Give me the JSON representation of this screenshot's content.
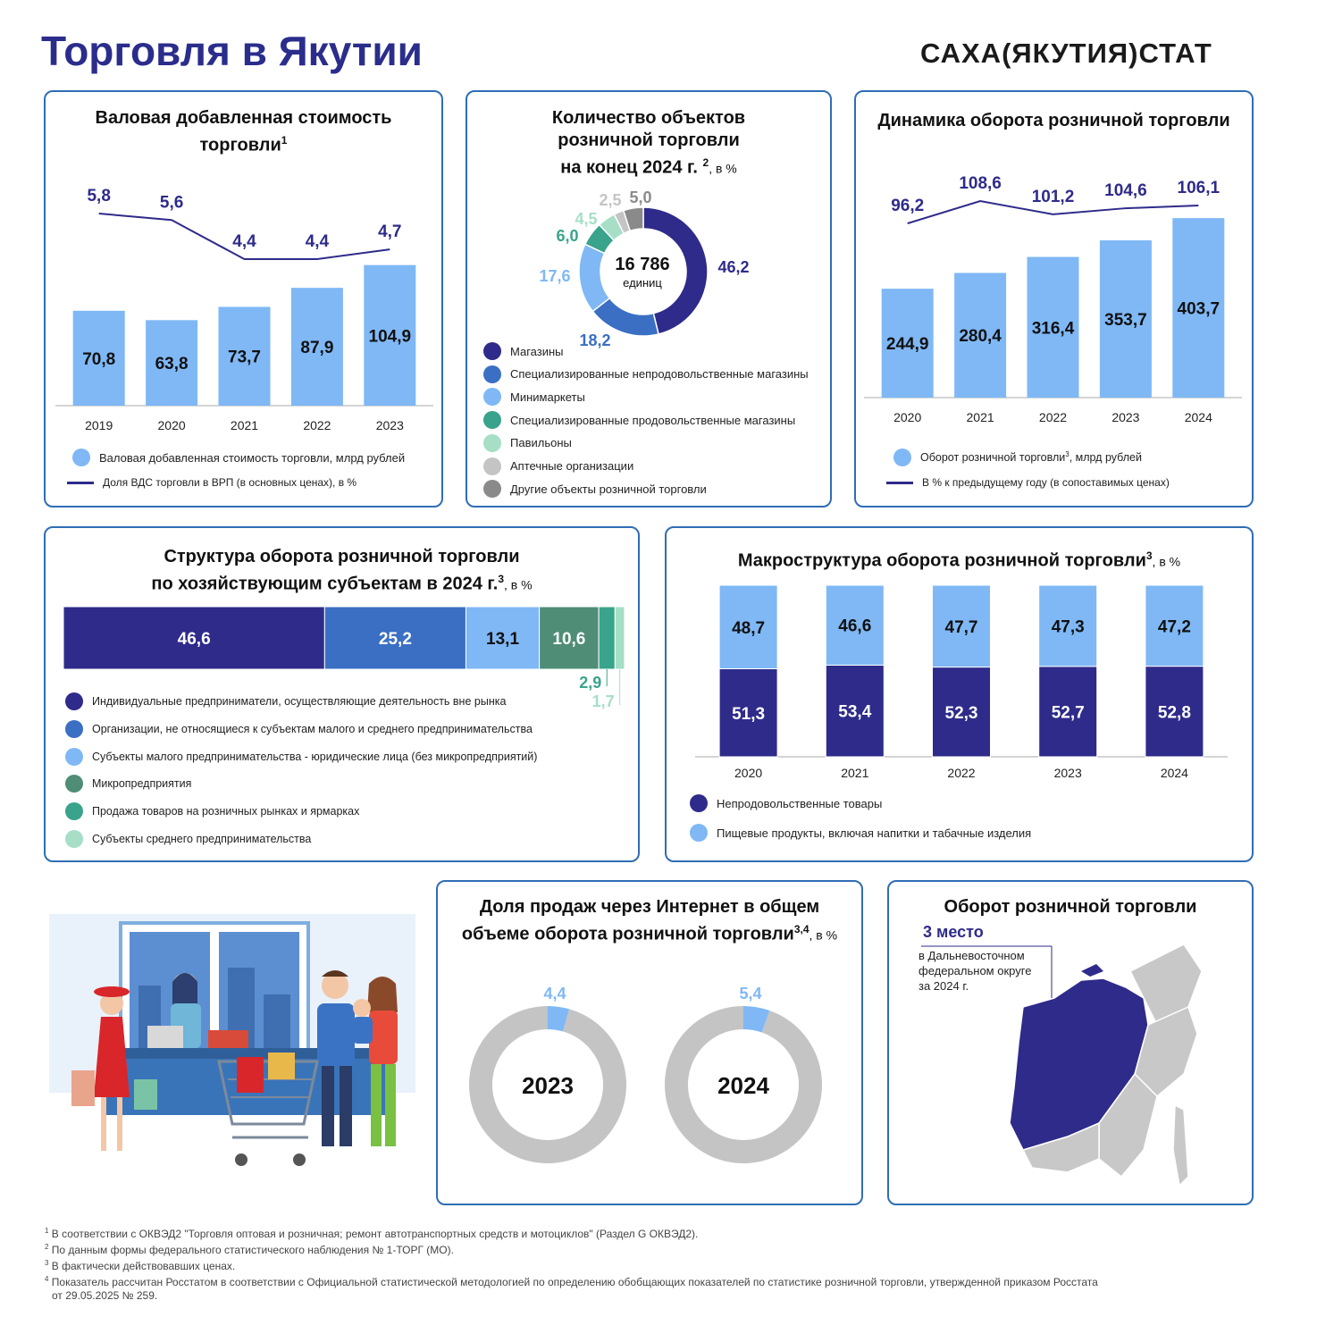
{
  "header": {
    "title": "Торговля в Якутии",
    "brand": "САХА(ЯКУТИЯ)СТАТ"
  },
  "colors": {
    "navy": "#2e2b8a",
    "blue": "#3a6fc4",
    "lightblue": "#7fb8f5",
    "teal": "#3aa38b",
    "mint": "#a6dfc6",
    "gray": "#c4c4c4",
    "darkgray": "#8a8a8a",
    "green": "#4f8d76",
    "title": "#2b2d8c",
    "border": "#2f6db5"
  },
  "gva": {
    "title_line1": "Валовая добавленная стоимость",
    "title_line2": "торговли",
    "title_sup": "1",
    "legend_bar": "Валовая добавленная стоимость торговли, млрд рублей",
    "legend_line": "Доля ВДС торговли в ВРП (в основных ценах),  в %"
  },
  "objects": {
    "title_line1": "Количество объектов",
    "title_line2": "розничной торговли",
    "title_line3": "на конец 2024 г.",
    "title_sup": "2",
    "unit": ", в %",
    "center_value": "16 786",
    "center_unit": "единиц"
  },
  "dynamics": {
    "title": "Динамика оборота розничной торговли",
    "legend_bar": "Оборот розничной торговли",
    "legend_bar_sup": "3",
    "legend_bar_unit": ", млрд рублей",
    "legend_line": "В % к предыдущему  году (в сопоставимых  ценах)"
  },
  "structure": {
    "title_line1": "Структура оборота розничной торговли",
    "title_line2": "по хозяйствующим  субъектам в 2024 г.",
    "title_sup": "3",
    "unit": ", в %"
  },
  "macro": {
    "title": "Макроструктура оборота розничной торговли",
    "title_sup": "3",
    "unit": ", в %"
  },
  "internet": {
    "title_line1": "Доля продаж через Интернет в общем",
    "title_line2": "объеме оборота розничной торговли",
    "title_sup": "3,4",
    "unit": ", в %"
  },
  "rank": {
    "title": "Оборот розничной торговли",
    "place": "3 место",
    "desc_line1": "в Дальневосточном",
    "desc_line2": "федеральном округе",
    "desc_line3": "за 2024 г."
  },
  "footnotes": [
    {
      "n": "1",
      "text": "В соответствии с ОКВЭД2 \"Торговля оптовая и розничная; ремонт автотранспортных средств и мотоциклов\" (Раздел G ОКВЭД2)."
    },
    {
      "n": "2",
      "text": "По данным  формы федерального статистического наблюдения № 1-ТОРГ (МО)."
    },
    {
      "n": "3",
      "text": "В фактически действовавших ценах."
    },
    {
      "n": "4",
      "text": "Показатель рассчитан Росстатом в соответствии с Официальной  статистической методологией по определению обобщающих показателей по статистике розничной торговли, утвержденной приказом Росстата"
    },
    {
      "n": "",
      "text": "от 29.05.2025 № 259."
    }
  ],
  "chart_data": [
    {
      "id": "gva",
      "type": "bar",
      "categories": [
        "2019",
        "2020",
        "2021",
        "2022",
        "2023"
      ],
      "values": [
        70.8,
        63.8,
        73.7,
        87.9,
        104.9
      ],
      "value_labels": [
        "70,8",
        "63,8",
        "73,7",
        "87,9",
        "104,9"
      ],
      "line_values": [
        5.8,
        5.6,
        4.4,
        4.4,
        4.7
      ],
      "line_labels": [
        "5,8",
        "5,6",
        "4,4",
        "4,4",
        "4,7"
      ],
      "ylim": [
        0,
        110
      ]
    },
    {
      "id": "objects",
      "type": "pie",
      "values": [
        46.2,
        18.2,
        17.6,
        6.0,
        4.5,
        2.5,
        5.0
      ],
      "value_labels": [
        "46,2",
        "18,2",
        "17,6",
        "6,0",
        "4,5",
        "2,5",
        "5,0"
      ],
      "labels": [
        "Магазины",
        "Специализированные  непродовольственные магазины",
        "Минимаркеты",
        "Специализированные  продовольственные магазины",
        "Павильоны",
        "Аптечные организации",
        "Другие объекты розничной торговли"
      ],
      "colors": [
        "#2e2b8a",
        "#3a6fc4",
        "#7fb8f5",
        "#3aa38b",
        "#a6dfc6",
        "#c4c4c4",
        "#8a8a8a"
      ]
    },
    {
      "id": "dynamics",
      "type": "bar",
      "categories": [
        "2020",
        "2021",
        "2022",
        "2023",
        "2024"
      ],
      "values": [
        244.9,
        280.4,
        316.4,
        353.7,
        403.7
      ],
      "value_labels": [
        "244,9",
        "280,4",
        "316,4",
        "353,7",
        "403,7"
      ],
      "line_values": [
        96.2,
        108.6,
        101.2,
        104.6,
        106.1
      ],
      "line_labels": [
        "96,2",
        "108,6",
        "101,2",
        "104,6",
        "106,1"
      ],
      "ylim": [
        0,
        420
      ]
    },
    {
      "id": "structure",
      "type": "bar",
      "values": [
        46.6,
        25.2,
        13.1,
        10.6,
        2.9,
        1.7
      ],
      "value_labels": [
        "46,6",
        "25,2",
        "13,1",
        "10,6",
        "2,9",
        "1,7"
      ],
      "labels": [
        "Индивидуальные  предприниматели, осуществляющие деятельность вне рынка",
        "Организации, не относящиеся к субъектам малого и среднего предпринимательства",
        "Субъекты малого предпринимательства - юридические лица (без микропредприятий)",
        "Микропредприятия",
        "Продажа товаров на розничных рынках и ярмарках",
        "Субъекты среднего предпринимательства"
      ],
      "colors": [
        "#2e2b8a",
        "#3a6fc4",
        "#7fb8f5",
        "#4f8d76",
        "#3aa38b",
        "#a6dfc6"
      ]
    },
    {
      "id": "macro",
      "type": "bar",
      "categories": [
        "2020",
        "2021",
        "2022",
        "2023",
        "2024"
      ],
      "series": [
        {
          "name": "Непродовольственные товары",
          "values": [
            51.3,
            53.4,
            52.3,
            52.7,
            52.8
          ],
          "labels": [
            "51,3",
            "53,4",
            "52,3",
            "52,7",
            "52,8"
          ],
          "color": "#2e2b8a"
        },
        {
          "name": "Пищевые продукты, включая напитки и табачные  изделия",
          "values": [
            48.7,
            46.6,
            47.7,
            47.3,
            47.2
          ],
          "labels": [
            "48,7",
            "46,6",
            "47,7",
            "47,3",
            "47,2"
          ],
          "color": "#7fb8f5"
        }
      ]
    },
    {
      "id": "internet",
      "type": "pie",
      "categories": [
        "2023",
        "2024"
      ],
      "values": [
        4.4,
        5.4
      ],
      "value_labels": [
        "4,4",
        "5,4"
      ]
    }
  ]
}
